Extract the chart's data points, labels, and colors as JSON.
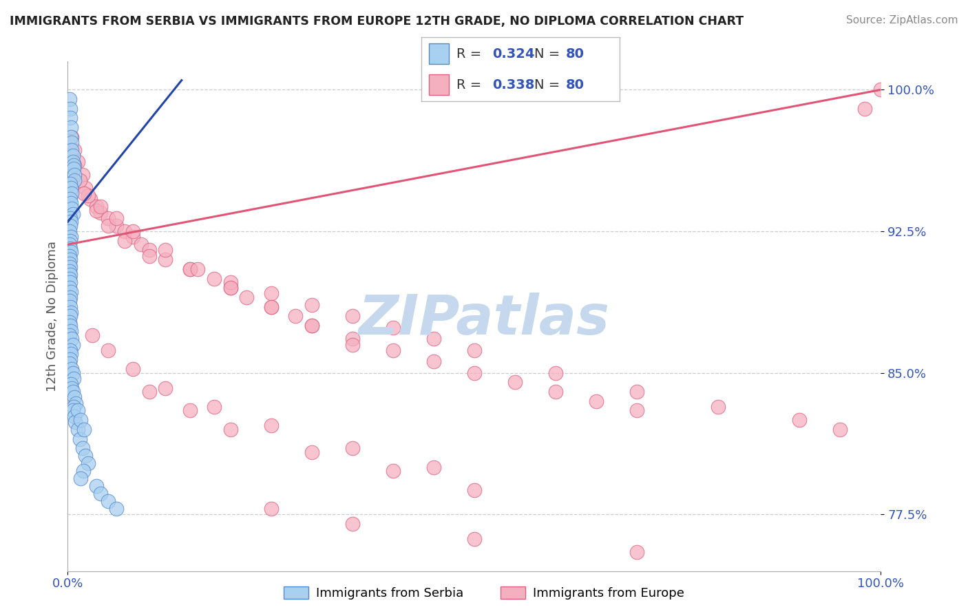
{
  "title": "IMMIGRANTS FROM SERBIA VS IMMIGRANTS FROM EUROPE 12TH GRADE, NO DIPLOMA CORRELATION CHART",
  "source": "Source: ZipAtlas.com",
  "ylabel": "12th Grade, No Diploma",
  "xmin": 0.0,
  "xmax": 1.0,
  "ymin": 0.745,
  "ymax": 1.015,
  "yticks": [
    0.775,
    0.85,
    0.925,
    1.0
  ],
  "ytick_labels": [
    "77.5%",
    "85.0%",
    "92.5%",
    "100.0%"
  ],
  "tick_color": "#3355bb",
  "legend_R_serbia": "0.324",
  "legend_N_serbia": "80",
  "legend_R_europe": "0.338",
  "legend_N_europe": "80",
  "serbia_color": "#a8d0f0",
  "europe_color": "#f5b0c0",
  "serbia_edge_color": "#5588cc",
  "europe_edge_color": "#e06080",
  "serbia_line_color": "#2244aa",
  "europe_line_color": "#e05575",
  "background_color": "#ffffff",
  "grid_color": "#cccccc",
  "title_color": "#222222",
  "watermark_color": "#c5d8ee",
  "serbia_label": "Immigrants from Serbia",
  "europe_label": "Immigrants from Europe",
  "serbia_scatter_x": [
    0.002,
    0.003,
    0.003,
    0.004,
    0.004,
    0.005,
    0.005,
    0.006,
    0.006,
    0.007,
    0.007,
    0.008,
    0.008,
    0.003,
    0.004,
    0.005,
    0.003,
    0.004,
    0.005,
    0.006,
    0.003,
    0.004,
    0.003,
    0.002,
    0.004,
    0.003,
    0.002,
    0.003,
    0.004,
    0.002,
    0.003,
    0.002,
    0.003,
    0.002,
    0.003,
    0.002,
    0.003,
    0.002,
    0.004,
    0.003,
    0.002,
    0.003,
    0.004,
    0.003,
    0.002,
    0.003,
    0.004,
    0.002,
    0.005,
    0.006,
    0.003,
    0.004,
    0.003,
    0.002,
    0.005,
    0.006,
    0.007,
    0.004,
    0.005,
    0.006,
    0.008,
    0.01,
    0.007,
    0.006,
    0.008,
    0.009,
    0.012,
    0.015,
    0.018,
    0.022,
    0.025,
    0.019,
    0.016,
    0.035,
    0.04,
    0.05,
    0.06,
    0.012,
    0.016,
    0.02
  ],
  "serbia_scatter_y": [
    0.995,
    0.99,
    0.985,
    0.98,
    0.975,
    0.972,
    0.968,
    0.965,
    0.962,
    0.96,
    0.958,
    0.955,
    0.952,
    0.95,
    0.948,
    0.945,
    0.942,
    0.94,
    0.937,
    0.934,
    0.932,
    0.93,
    0.928,
    0.925,
    0.922,
    0.92,
    0.918,
    0.916,
    0.914,
    0.912,
    0.91,
    0.908,
    0.906,
    0.904,
    0.902,
    0.9,
    0.898,
    0.895,
    0.893,
    0.89,
    0.888,
    0.885,
    0.882,
    0.88,
    0.877,
    0.875,
    0.872,
    0.87,
    0.868,
    0.865,
    0.862,
    0.86,
    0.857,
    0.855,
    0.852,
    0.85,
    0.847,
    0.844,
    0.842,
    0.84,
    0.837,
    0.834,
    0.832,
    0.83,
    0.827,
    0.824,
    0.82,
    0.815,
    0.81,
    0.806,
    0.802,
    0.798,
    0.794,
    0.79,
    0.786,
    0.782,
    0.778,
    0.83,
    0.825,
    0.82
  ],
  "europe_scatter_x": [
    0.005,
    0.008,
    0.012,
    0.018,
    0.022,
    0.028,
    0.035,
    0.04,
    0.05,
    0.06,
    0.07,
    0.08,
    0.09,
    0.1,
    0.12,
    0.15,
    0.18,
    0.2,
    0.22,
    0.25,
    0.28,
    0.3,
    0.35,
    0.4,
    0.45,
    0.5,
    0.55,
    0.6,
    0.65,
    0.7,
    0.008,
    0.015,
    0.025,
    0.035,
    0.05,
    0.07,
    0.1,
    0.15,
    0.2,
    0.25,
    0.3,
    0.35,
    0.4,
    0.45,
    0.5,
    0.6,
    0.7,
    0.8,
    0.9,
    0.95,
    0.02,
    0.04,
    0.06,
    0.08,
    0.12,
    0.16,
    0.2,
    0.25,
    0.3,
    0.35,
    0.03,
    0.05,
    0.08,
    0.12,
    0.18,
    0.25,
    0.35,
    0.45,
    0.1,
    0.15,
    0.2,
    0.3,
    0.4,
    0.5,
    0.25,
    0.35,
    0.5,
    0.7,
    1.0,
    0.98
  ],
  "europe_scatter_y": [
    0.975,
    0.968,
    0.962,
    0.955,
    0.948,
    0.942,
    0.938,
    0.935,
    0.932,
    0.928,
    0.925,
    0.922,
    0.918,
    0.915,
    0.91,
    0.905,
    0.9,
    0.895,
    0.89,
    0.885,
    0.88,
    0.875,
    0.868,
    0.862,
    0.856,
    0.85,
    0.845,
    0.84,
    0.835,
    0.83,
    0.96,
    0.952,
    0.944,
    0.936,
    0.928,
    0.92,
    0.912,
    0.905,
    0.898,
    0.892,
    0.886,
    0.88,
    0.874,
    0.868,
    0.862,
    0.85,
    0.84,
    0.832,
    0.825,
    0.82,
    0.945,
    0.938,
    0.932,
    0.925,
    0.915,
    0.905,
    0.895,
    0.885,
    0.875,
    0.865,
    0.87,
    0.862,
    0.852,
    0.842,
    0.832,
    0.822,
    0.81,
    0.8,
    0.84,
    0.83,
    0.82,
    0.808,
    0.798,
    0.788,
    0.778,
    0.77,
    0.762,
    0.755,
    1.0,
    0.99
  ],
  "serbia_reg": [
    0.0,
    0.14,
    0.93,
    1.005
  ],
  "europe_reg": [
    0.0,
    1.0,
    0.918,
    1.0
  ]
}
